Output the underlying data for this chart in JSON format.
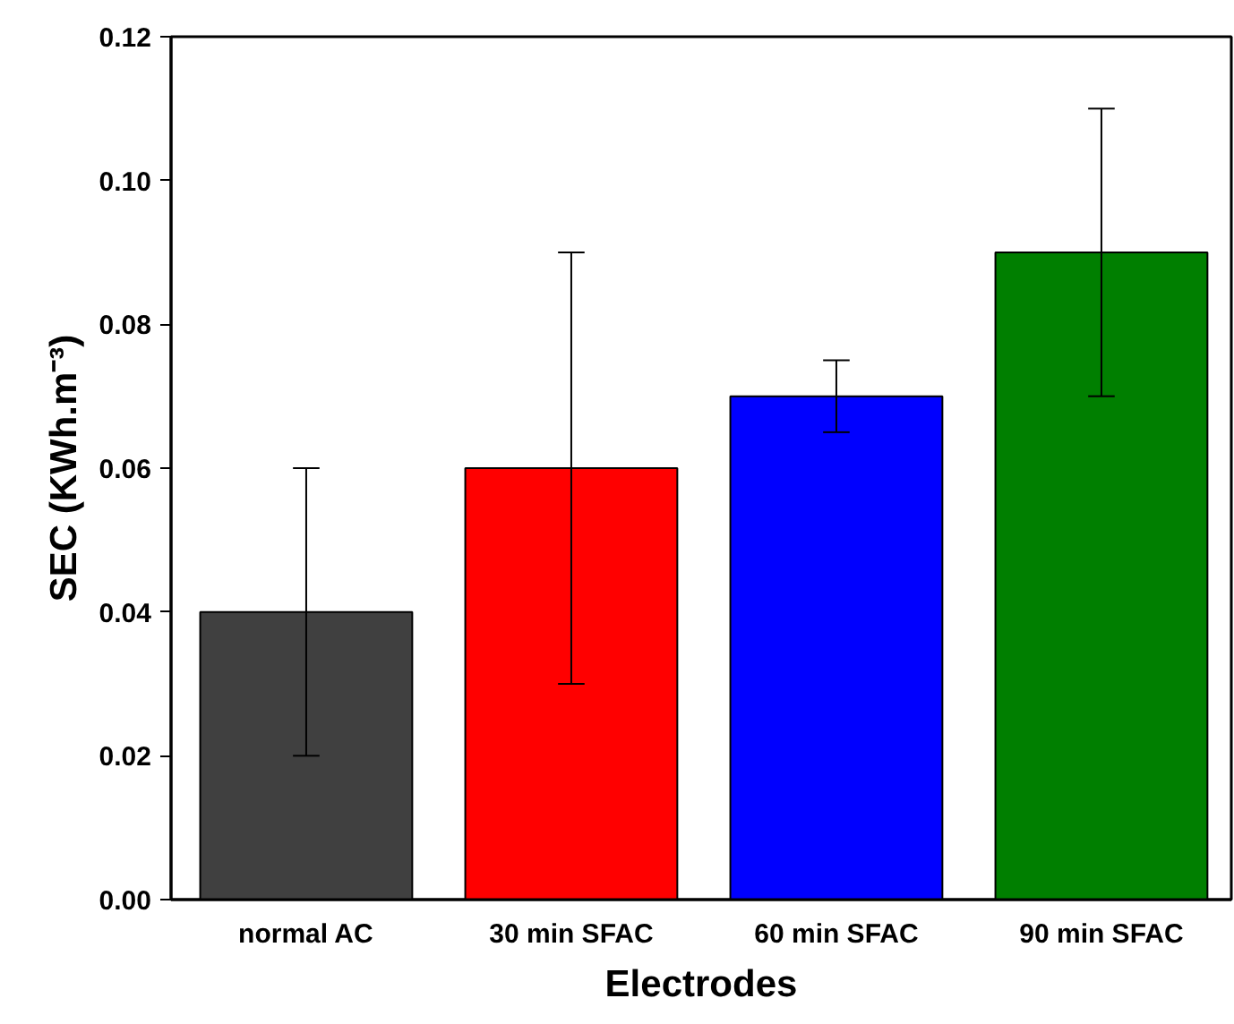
{
  "chart_data": {
    "type": "bar",
    "xlabel": "Electrodes",
    "ylabel": "SEC (KWh.m⁻³)",
    "categories": [
      "normal AC",
      "30 min SFAC",
      "60 min SFAC",
      "90 min SFAC"
    ],
    "values": [
      0.04,
      0.06,
      0.07,
      0.09
    ],
    "colors": [
      "#404040",
      "#ff0000",
      "#0000ff",
      "#007f00"
    ],
    "errors": [
      0.02,
      0.03,
      0.005,
      0.02
    ],
    "ylim": [
      0,
      0.12
    ],
    "yticks": [
      {
        "value": 0,
        "label": "0.00"
      },
      {
        "value": 0.02,
        "label": "0.02"
      },
      {
        "value": 0.04,
        "label": "0.04"
      },
      {
        "value": 0.06,
        "label": "0.06"
      },
      {
        "value": 0.08,
        "label": "0.08"
      },
      {
        "value": 0.1,
        "label": "0.10"
      },
      {
        "value": 0.12,
        "label": "0.12"
      }
    ],
    "grid": false
  }
}
